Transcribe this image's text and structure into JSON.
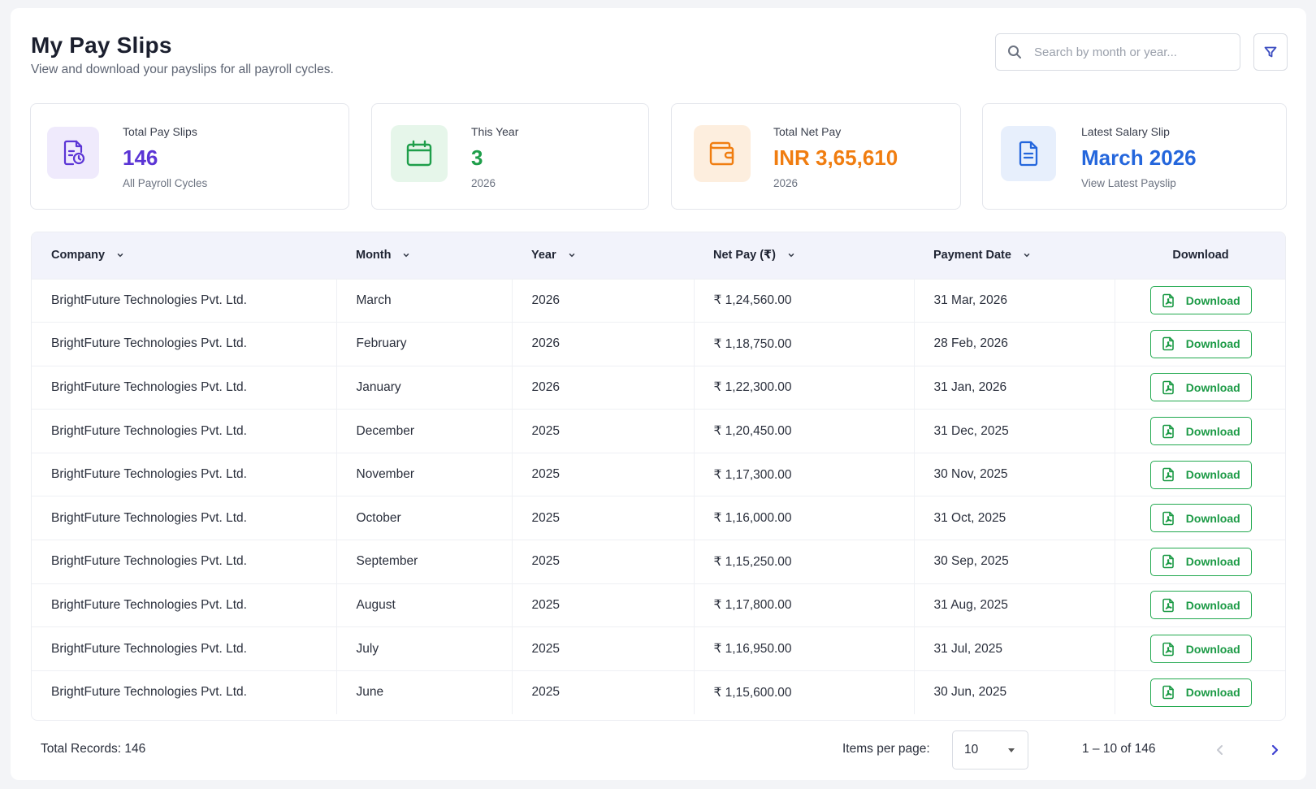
{
  "header": {
    "title": "My Pay Slips",
    "subtitle": "View and download your payslips for all payroll cycles.",
    "search_placeholder": "Search by month or year..."
  },
  "stats": [
    {
      "label": "Total Pay Slips",
      "value": "146",
      "sub": "All Payroll Cycles",
      "icon": "document-clock-icon",
      "color": "#5b35d5",
      "bg": "#efeafc"
    },
    {
      "label": "This Year",
      "value": "3",
      "sub": "2026",
      "icon": "calendar-icon",
      "color": "#1e9e4a",
      "bg": "#e6f6ea"
    },
    {
      "label": "Total Net Pay",
      "value": "INR 3,65,610",
      "sub": "2026",
      "icon": "wallet-icon",
      "color": "#f07d10",
      "bg": "#fdeede"
    },
    {
      "label": "Latest Salary Slip",
      "value": "March 2026",
      "sub": "View Latest Payslip",
      "icon": "document-icon",
      "color": "#2466dc",
      "bg": "#e7effc"
    }
  ],
  "table": {
    "columns": [
      "Company",
      "Month",
      "Year",
      "Net Pay (₹)",
      "Payment Date",
      "Download"
    ],
    "download_label": "Download",
    "rows": [
      [
        "BrightFuture Technologies Pvt. Ltd.",
        "March",
        "2026",
        "₹ 1,24,560.00",
        "31 Mar, 2026"
      ],
      [
        "BrightFuture Technologies Pvt. Ltd.",
        "February",
        "2026",
        "₹ 1,18,750.00",
        "28 Feb, 2026"
      ],
      [
        "BrightFuture Technologies Pvt. Ltd.",
        "January",
        "2026",
        "₹ 1,22,300.00",
        "31 Jan, 2026"
      ],
      [
        "BrightFuture Technologies Pvt. Ltd.",
        "December",
        "2025",
        "₹ 1,20,450.00",
        "31 Dec, 2025"
      ],
      [
        "BrightFuture Technologies Pvt. Ltd.",
        "November",
        "2025",
        "₹ 1,17,300.00",
        "30 Nov, 2025"
      ],
      [
        "BrightFuture Technologies Pvt. Ltd.",
        "October",
        "2025",
        "₹ 1,16,000.00",
        "31 Oct, 2025"
      ],
      [
        "BrightFuture Technologies Pvt. Ltd.",
        "September",
        "2025",
        "₹ 1,15,250.00",
        "30 Sep, 2025"
      ],
      [
        "BrightFuture Technologies Pvt. Ltd.",
        "August",
        "2025",
        "₹ 1,17,800.00",
        "31 Aug, 2025"
      ],
      [
        "BrightFuture Technologies Pvt. Ltd.",
        "July",
        "2025",
        "₹ 1,16,950.00",
        "31 Jul, 2025"
      ],
      [
        "BrightFuture Technologies Pvt. Ltd.",
        "June",
        "2025",
        "₹ 1,15,600.00",
        "30 Jun, 2025"
      ]
    ]
  },
  "footer": {
    "total_records": "Total Records: 146",
    "items_per_page_label": "Items per page:",
    "items_per_page_value": "10",
    "range": "1 – 10 of 146"
  }
}
